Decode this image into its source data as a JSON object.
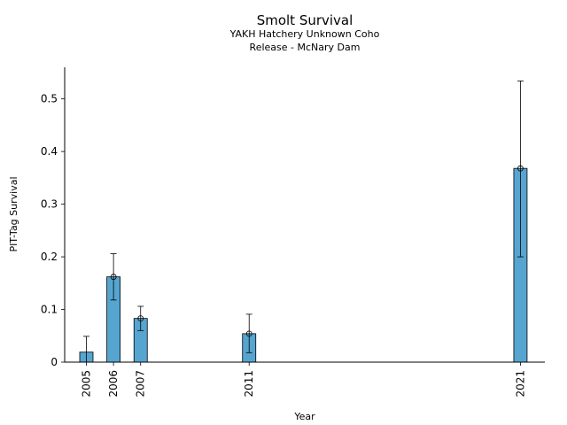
{
  "chart_data": {
    "type": "bar",
    "title": "Smolt Survival",
    "subtitle_lines": [
      "YAKH Hatchery Unknown Coho",
      "Release - McNary Dam"
    ],
    "xlabel": "Year",
    "ylabel": "PIT-Tag Survival",
    "x_is_numeric_year": true,
    "xlim": [
      2004.2,
      2021.9
    ],
    "ylim": [
      0,
      0.56
    ],
    "yticks": [
      0,
      0.1,
      0.2,
      0.3,
      0.4,
      0.5
    ],
    "ytick_labels": [
      "0",
      "0.1",
      "0.2",
      "0.3",
      "0.4",
      "0.5"
    ],
    "categories": [
      "2005",
      "2006",
      "2007",
      "2011",
      "2021"
    ],
    "x": [
      2005,
      2006,
      2007,
      2011,
      2021
    ],
    "values": [
      0.019,
      0.162,
      0.083,
      0.054,
      0.368
    ],
    "error_low": [
      0.0,
      0.118,
      0.06,
      0.018,
      0.2
    ],
    "error_high": [
      0.049,
      0.206,
      0.106,
      0.091,
      0.534
    ],
    "show_point_marker": [
      false,
      true,
      true,
      true,
      true
    ],
    "grid": false,
    "legend": "none",
    "colors": {
      "bar": "#56a5d0",
      "edge": "#000000",
      "axis": "#000000"
    }
  }
}
